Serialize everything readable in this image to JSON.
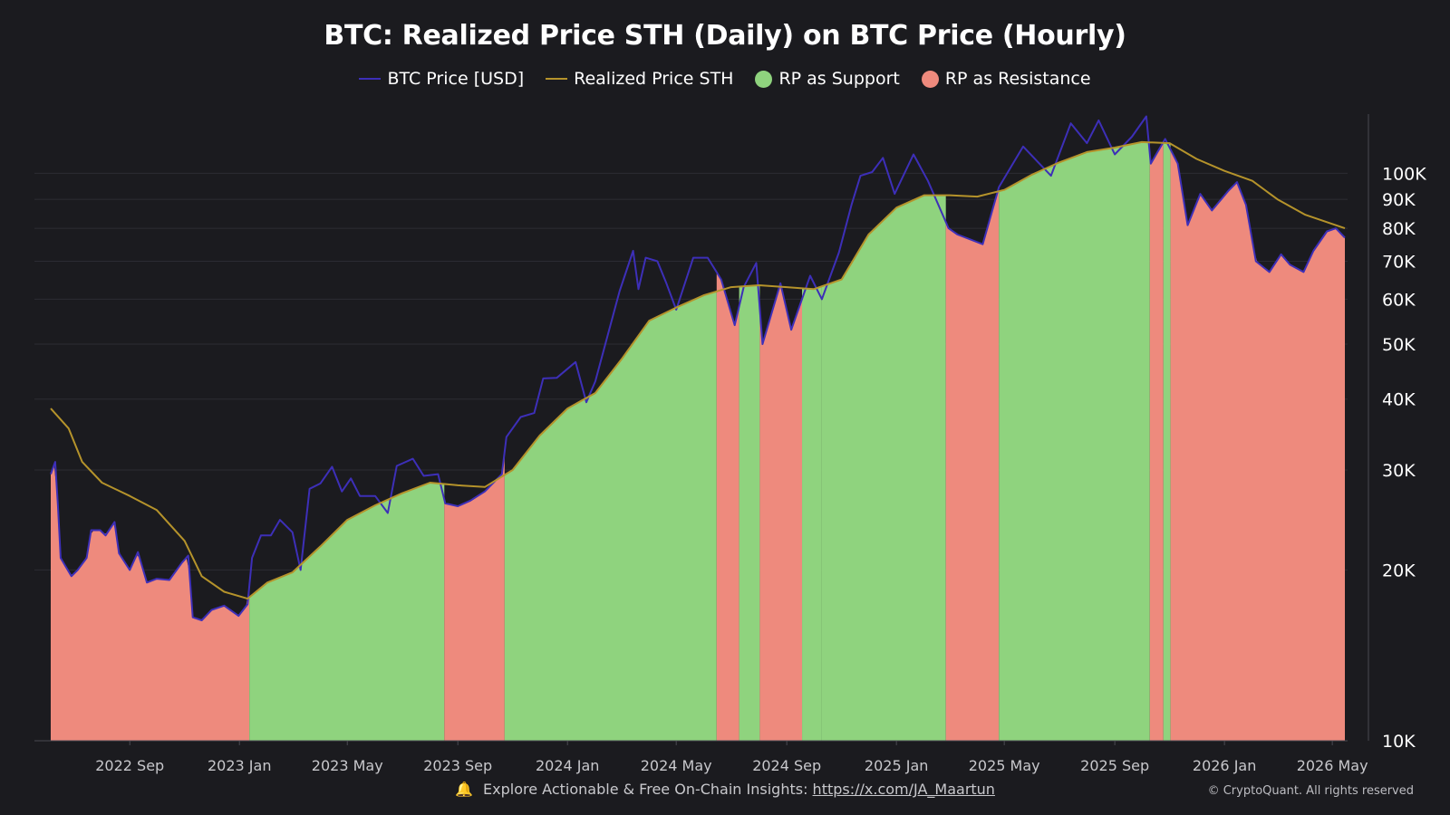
{
  "header": {
    "title": "BTC: Realized Price STH (Daily) on BTC Price (Hourly)"
  },
  "legend": [
    {
      "label": "BTC Price [USD]",
      "kind": "line",
      "color": "#3d2fb8"
    },
    {
      "label": "Realized Price STH",
      "kind": "line",
      "color": "#b5932b"
    },
    {
      "label": "RP as Support",
      "kind": "dot",
      "color": "#8fd37e"
    },
    {
      "label": "RP as Resistance",
      "kind": "dot",
      "color": "#ee8a7d"
    }
  ],
  "footer": {
    "bell_icon": "bell-icon",
    "text": "Explore Actionable & Free On-Chain Insights:",
    "link": "https://x.com/JA_Maartun",
    "copyright": "© CryptoQuant. All rights reserved"
  },
  "chart_data": {
    "type": "area",
    "title": "BTC: Realized Price STH (Daily) on BTC Price (Hourly)",
    "xlabel": "",
    "ylabel": "",
    "y_scale": "log",
    "x_range": [
      "2022-06-01",
      "2026-05-18"
    ],
    "y_range": [
      10000,
      130000
    ],
    "grid": "horizontal",
    "legend_position": "top-center",
    "x_tick_labels": [
      {
        "date": "2022-09-01",
        "label": "2022 Sep"
      },
      {
        "date": "2023-01-01",
        "label": "2023 Jan"
      },
      {
        "date": "2023-05-01",
        "label": "2023 May"
      },
      {
        "date": "2023-09-01",
        "label": "2023 Sep"
      },
      {
        "date": "2024-01-01",
        "label": "2024 Jan"
      },
      {
        "date": "2024-05-01",
        "label": "2024 May"
      },
      {
        "date": "2024-09-01",
        "label": "2024 Sep"
      },
      {
        "date": "2025-01-01",
        "label": "2025 Jan"
      },
      {
        "date": "2025-05-01",
        "label": "2025 May"
      },
      {
        "date": "2025-09-01",
        "label": "2025 Sep"
      },
      {
        "date": "2026-01-01",
        "label": "2026 Jan"
      },
      {
        "date": "2026-05-01",
        "label": "2026 May"
      }
    ],
    "y_tick_labels": [
      {
        "value": 100000,
        "label": "100K"
      },
      {
        "value": 90000,
        "label": "90K"
      },
      {
        "value": 80000,
        "label": "80K"
      },
      {
        "value": 70000,
        "label": "70K"
      },
      {
        "value": 60000,
        "label": "60K"
      },
      {
        "value": 50000,
        "label": "50K"
      },
      {
        "value": 40000,
        "label": "40K"
      },
      {
        "value": 30000,
        "label": "30K"
      },
      {
        "value": 20000,
        "label": "20K"
      },
      {
        "value": 10000,
        "label": "10K"
      }
    ],
    "series": [
      {
        "name": "BTC Price [USD]",
        "color": "#3d2fb8",
        "points": [
          [
            "2022-06-05",
            29500
          ],
          [
            "2022-06-10",
            31000
          ],
          [
            "2022-06-13",
            26000
          ],
          [
            "2022-06-16",
            21000
          ],
          [
            "2022-06-20",
            20500
          ],
          [
            "2022-06-28",
            19500
          ],
          [
            "2022-07-05",
            20000
          ],
          [
            "2022-07-15",
            21000
          ],
          [
            "2022-07-20",
            23500
          ],
          [
            "2022-07-30",
            23500
          ],
          [
            "2022-08-05",
            23000
          ],
          [
            "2022-08-15",
            24300
          ],
          [
            "2022-08-20",
            21400
          ],
          [
            "2022-09-01",
            20000
          ],
          [
            "2022-09-10",
            21500
          ],
          [
            "2022-09-20",
            19000
          ],
          [
            "2022-10-01",
            19300
          ],
          [
            "2022-10-15",
            19200
          ],
          [
            "2022-10-29",
            20600
          ],
          [
            "2022-11-05",
            21200
          ],
          [
            "2022-11-10",
            16500
          ],
          [
            "2022-11-20",
            16300
          ],
          [
            "2022-12-01",
            17000
          ],
          [
            "2022-12-15",
            17300
          ],
          [
            "2022-12-31",
            16600
          ],
          [
            "2023-01-10",
            17400
          ],
          [
            "2023-01-15",
            21000
          ],
          [
            "2023-01-25",
            23000
          ],
          [
            "2023-02-05",
            23000
          ],
          [
            "2023-02-15",
            24500
          ],
          [
            "2023-03-01",
            23300
          ],
          [
            "2023-03-10",
            20000
          ],
          [
            "2023-03-20",
            27800
          ],
          [
            "2023-04-01",
            28400
          ],
          [
            "2023-04-14",
            30400
          ],
          [
            "2023-04-25",
            27500
          ],
          [
            "2023-05-05",
            29000
          ],
          [
            "2023-05-15",
            27000
          ],
          [
            "2023-06-01",
            27000
          ],
          [
            "2023-06-15",
            25200
          ],
          [
            "2023-06-25",
            30500
          ],
          [
            "2023-07-13",
            31400
          ],
          [
            "2023-07-25",
            29300
          ],
          [
            "2023-08-10",
            29500
          ],
          [
            "2023-08-18",
            26200
          ],
          [
            "2023-09-01",
            25900
          ],
          [
            "2023-09-15",
            26500
          ],
          [
            "2023-10-01",
            27500
          ],
          [
            "2023-10-20",
            29500
          ],
          [
            "2023-10-25",
            34300
          ],
          [
            "2023-11-10",
            37200
          ],
          [
            "2023-11-25",
            37800
          ],
          [
            "2023-12-05",
            43500
          ],
          [
            "2023-12-20",
            43600
          ],
          [
            "2024-01-10",
            46500
          ],
          [
            "2024-01-22",
            39500
          ],
          [
            "2024-02-01",
            43000
          ],
          [
            "2024-02-15",
            52000
          ],
          [
            "2024-02-28",
            62000
          ],
          [
            "2024-03-14",
            73000
          ],
          [
            "2024-03-20",
            62500
          ],
          [
            "2024-03-28",
            71000
          ],
          [
            "2024-04-10",
            70000
          ],
          [
            "2024-04-20",
            64000
          ],
          [
            "2024-05-01",
            57500
          ],
          [
            "2024-05-20",
            71000
          ],
          [
            "2024-06-05",
            71000
          ],
          [
            "2024-06-20",
            65000
          ],
          [
            "2024-07-05",
            54000
          ],
          [
            "2024-07-15",
            63000
          ],
          [
            "2024-07-29",
            69500
          ],
          [
            "2024-08-05",
            50000
          ],
          [
            "2024-08-25",
            64000
          ],
          [
            "2024-09-06",
            53000
          ],
          [
            "2024-09-27",
            66000
          ],
          [
            "2024-10-10",
            60000
          ],
          [
            "2024-10-29",
            72500
          ],
          [
            "2024-11-12",
            88000
          ],
          [
            "2024-11-22",
            99000
          ],
          [
            "2024-12-05",
            100500
          ],
          [
            "2024-12-17",
            106500
          ],
          [
            "2024-12-30",
            92000
          ],
          [
            "2025-01-20",
            108000
          ],
          [
            "2025-02-05",
            97000
          ],
          [
            "2025-02-28",
            80000
          ],
          [
            "2025-03-10",
            78000
          ],
          [
            "2025-04-07",
            75000
          ],
          [
            "2025-04-25",
            94500
          ],
          [
            "2025-05-22",
            111500
          ],
          [
            "2025-06-22",
            99000
          ],
          [
            "2025-07-14",
            122500
          ],
          [
            "2025-08-01",
            113000
          ],
          [
            "2025-08-14",
            124000
          ],
          [
            "2025-09-01",
            108000
          ],
          [
            "2025-09-20",
            116000
          ],
          [
            "2025-10-06",
            126000
          ],
          [
            "2025-10-11",
            104000
          ],
          [
            "2025-10-27",
            115000
          ],
          [
            "2025-11-10",
            104000
          ],
          [
            "2025-11-21",
            81000
          ],
          [
            "2025-12-05",
            92000
          ],
          [
            "2025-12-18",
            86000
          ],
          [
            "2026-01-05",
            93000
          ],
          [
            "2026-01-15",
            96500
          ],
          [
            "2026-01-25",
            88000
          ],
          [
            "2026-02-05",
            70000
          ],
          [
            "2026-02-20",
            67000
          ],
          [
            "2026-03-05",
            72000
          ],
          [
            "2026-03-15",
            69000
          ],
          [
            "2026-03-30",
            67000
          ],
          [
            "2026-04-10",
            73000
          ],
          [
            "2026-04-25",
            79000
          ],
          [
            "2026-05-05",
            80000
          ],
          [
            "2026-05-15",
            77000
          ]
        ]
      },
      {
        "name": "Realized Price STH",
        "color": "#b5932b",
        "points": [
          [
            "2022-06-05",
            38500
          ],
          [
            "2022-06-25",
            35500
          ],
          [
            "2022-07-10",
            31000
          ],
          [
            "2022-08-01",
            28500
          ],
          [
            "2022-09-01",
            27000
          ],
          [
            "2022-10-01",
            25500
          ],
          [
            "2022-11-01",
            22500
          ],
          [
            "2022-11-20",
            19500
          ],
          [
            "2022-12-15",
            18300
          ],
          [
            "2023-01-10",
            17800
          ],
          [
            "2023-02-01",
            19000
          ],
          [
            "2023-03-01",
            19800
          ],
          [
            "2023-04-01",
            22000
          ],
          [
            "2023-05-01",
            24500
          ],
          [
            "2023-06-01",
            26000
          ],
          [
            "2023-07-01",
            27300
          ],
          [
            "2023-08-01",
            28500
          ],
          [
            "2023-09-01",
            28200
          ],
          [
            "2023-10-01",
            28000
          ],
          [
            "2023-11-01",
            30000
          ],
          [
            "2023-12-01",
            34500
          ],
          [
            "2024-01-01",
            38500
          ],
          [
            "2024-02-01",
            41000
          ],
          [
            "2024-03-01",
            47000
          ],
          [
            "2024-04-01",
            55000
          ],
          [
            "2024-05-01",
            58000
          ],
          [
            "2024-06-01",
            61000
          ],
          [
            "2024-07-01",
            63000
          ],
          [
            "2024-08-01",
            63500
          ],
          [
            "2024-09-01",
            63000
          ],
          [
            "2024-10-01",
            62500
          ],
          [
            "2024-11-01",
            65000
          ],
          [
            "2024-12-01",
            78000
          ],
          [
            "2025-01-01",
            87000
          ],
          [
            "2025-02-01",
            91500
          ],
          [
            "2025-03-01",
            91500
          ],
          [
            "2025-04-01",
            91000
          ],
          [
            "2025-05-01",
            93500
          ],
          [
            "2025-06-01",
            99500
          ],
          [
            "2025-07-01",
            104500
          ],
          [
            "2025-08-01",
            109000
          ],
          [
            "2025-09-01",
            111000
          ],
          [
            "2025-10-01",
            113500
          ],
          [
            "2025-11-01",
            113000
          ],
          [
            "2025-12-01",
            106000
          ],
          [
            "2026-01-01",
            101000
          ],
          [
            "2026-02-01",
            97000
          ],
          [
            "2026-03-01",
            90000
          ],
          [
            "2026-04-01",
            84500
          ],
          [
            "2026-05-15",
            80000
          ]
        ]
      }
    ],
    "regions": [
      {
        "start": "2022-06-01",
        "end": "2023-01-12",
        "type": "RP as Resistance"
      },
      {
        "start": "2023-01-12",
        "end": "2023-08-17",
        "type": "RP as Support"
      },
      {
        "start": "2023-08-17",
        "end": "2023-10-23",
        "type": "RP as Resistance"
      },
      {
        "start": "2023-10-23",
        "end": "2024-06-15",
        "type": "RP as Support"
      },
      {
        "start": "2024-06-15",
        "end": "2024-07-10",
        "type": "RP as Resistance"
      },
      {
        "start": "2024-07-10",
        "end": "2024-08-02",
        "type": "RP as Support"
      },
      {
        "start": "2024-08-02",
        "end": "2024-09-18",
        "type": "RP as Resistance"
      },
      {
        "start": "2024-09-18",
        "end": "2024-10-10",
        "type": "RP as Support"
      },
      {
        "start": "2024-10-10",
        "end": "2025-02-25",
        "type": "RP as Support"
      },
      {
        "start": "2025-02-25",
        "end": "2025-04-25",
        "type": "RP as Resistance"
      },
      {
        "start": "2025-04-25",
        "end": "2025-10-10",
        "type": "RP as Support"
      },
      {
        "start": "2025-10-10",
        "end": "2025-10-25",
        "type": "RP as Resistance"
      },
      {
        "start": "2025-10-25",
        "end": "2025-11-02",
        "type": "RP as Support"
      },
      {
        "start": "2025-11-02",
        "end": "2026-05-18",
        "type": "RP as Resistance"
      }
    ]
  }
}
